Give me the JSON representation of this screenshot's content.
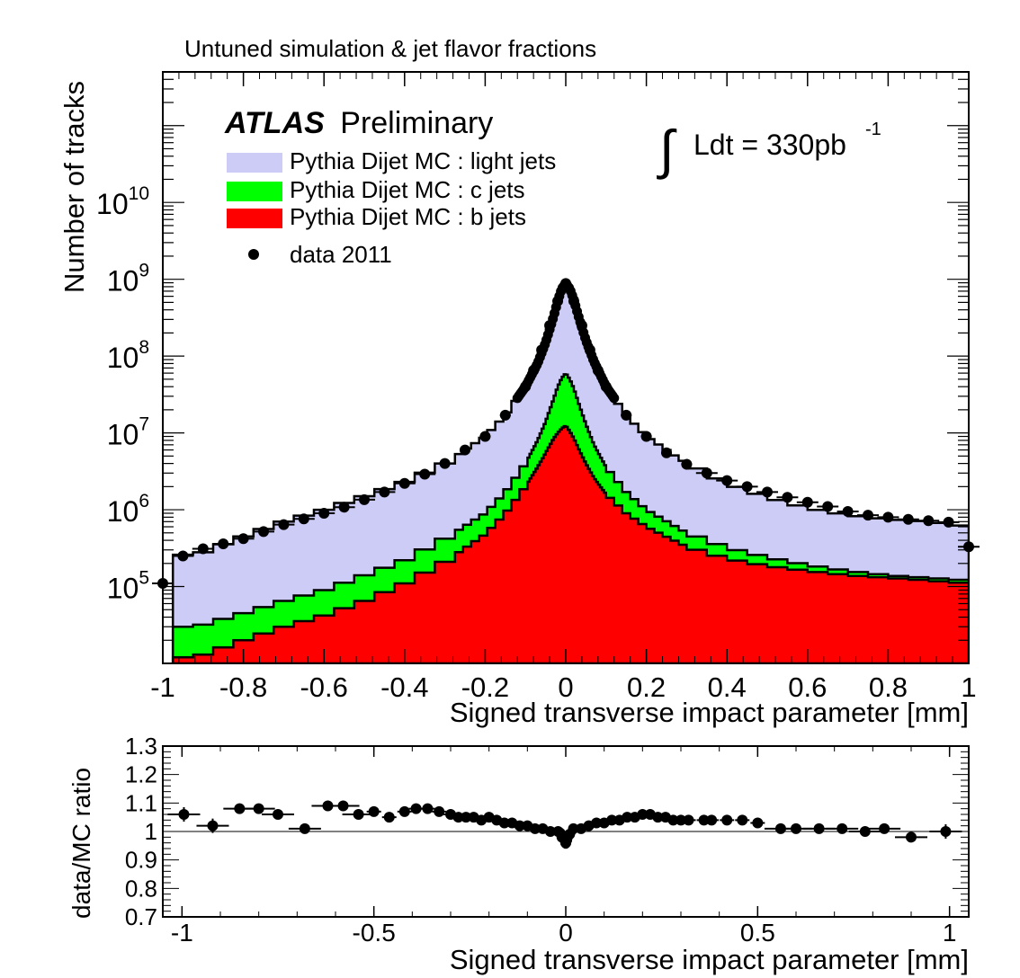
{
  "figure": {
    "top_title": "Untuned simulation & jet flavor fractions",
    "atlas_bold": "ATLAS",
    "atlas_rest": "Preliminary",
    "lumi": {
      "integral_symbol": "∫",
      "text": "Ldt = 330pb",
      "exponent": "-1"
    },
    "colors": {
      "light": "#ccccf7",
      "c": "#00ff00",
      "b": "#ff0000",
      "data": "#000000",
      "outline": "#000000"
    }
  },
  "chart_data": [
    {
      "type": "histogram",
      "stacked": true,
      "log_y": true,
      "ylabel": "Number of tracks",
      "xlabel": "Signed transverse impact parameter [mm]",
      "xlim": [
        -1,
        1
      ],
      "ylim": [
        10000,
        500000000000
      ],
      "x_ticks": [
        -1,
        -0.8,
        -0.6,
        -0.4,
        -0.2,
        0,
        0.2,
        0.4,
        0.6,
        0.8,
        1
      ],
      "x_tick_labels": [
        "-1",
        "-0.8",
        "-0.6",
        "-0.4",
        "-0.2",
        "0",
        "0.2",
        "0.4",
        "0.6",
        "0.8",
        "1"
      ],
      "y_ticks": [
        {
          "base": "10",
          "exp": "5",
          "value": 100000
        },
        {
          "base": "10",
          "exp": "6",
          "value": 1000000
        },
        {
          "base": "10",
          "exp": "7",
          "value": 10000000
        },
        {
          "base": "10",
          "exp": "8",
          "value": 100000000
        },
        {
          "base": "10",
          "exp": "9",
          "value": 1000000000
        },
        {
          "base": "10",
          "exp": "10",
          "value": 10000000000
        }
      ],
      "legend": [
        {
          "label": "Pythia Dijet MC : light jets",
          "kind": "fill",
          "color_key": "light"
        },
        {
          "label": "Pythia Dijet MC : c jets",
          "kind": "fill",
          "color_key": "c"
        },
        {
          "label": "Pythia Dijet MC : b jets",
          "kind": "fill",
          "color_key": "b"
        },
        {
          "label": "data 2011",
          "kind": "marker",
          "color_key": "data"
        }
      ],
      "profile": {
        "x": [
          -0.95,
          -0.9,
          -0.8,
          -0.7,
          -0.6,
          -0.5,
          -0.4,
          -0.3,
          -0.2,
          -0.15,
          -0.1,
          -0.07,
          -0.05,
          -0.03,
          -0.02,
          -0.01,
          0,
          0.01,
          0.02,
          0.03,
          0.05,
          0.07,
          0.1,
          0.15,
          0.2,
          0.3,
          0.4,
          0.5,
          0.6,
          0.7,
          0.8,
          0.9,
          1.0
        ],
        "total": [
          260000,
          280000,
          450000,
          700000,
          1000000,
          1500000,
          2300000,
          4000000,
          9000000,
          17000000,
          40000000,
          80000000,
          150000000,
          330000000,
          520000000,
          750000000,
          880000000,
          750000000,
          540000000,
          350000000,
          160000000,
          85000000,
          40000000,
          17000000,
          9000000,
          4000000,
          2200000,
          1450000,
          1050000,
          850000,
          750000,
          700000,
          600000
        ],
        "c": [
          30000,
          32000,
          45000,
          65000,
          90000,
          140000,
          220000,
          420000,
          900000,
          1700000,
          4000000,
          8000000,
          14000000,
          28000000,
          40000000,
          52000000,
          60000000,
          50000000,
          38000000,
          26000000,
          13000000,
          7000000,
          3600000,
          1700000,
          1000000,
          500000,
          320000,
          240000,
          190000,
          160000,
          140000,
          130000,
          120000
        ],
        "b": [
          12000,
          13000,
          20000,
          30000,
          42000,
          65000,
          110000,
          210000,
          480000,
          900000,
          2000000,
          3600000,
          5500000,
          8500000,
          10000000,
          11500000,
          12500000,
          10500000,
          8500000,
          6500000,
          4000000,
          2600000,
          1600000,
          900000,
          600000,
          330000,
          230000,
          185000,
          160000,
          140000,
          130000,
          120000,
          110000
        ]
      },
      "data_points": {
        "x": [
          -1.0,
          -0.95,
          -0.9,
          -0.85,
          -0.8,
          -0.75,
          -0.7,
          -0.65,
          -0.6,
          -0.55,
          -0.5,
          -0.45,
          -0.4,
          -0.35,
          -0.3,
          -0.25,
          -0.2,
          -0.15,
          -0.1,
          -0.08,
          -0.06,
          -0.04,
          -0.02,
          0,
          0.02,
          0.04,
          0.06,
          0.08,
          0.1,
          0.15,
          0.2,
          0.25,
          0.3,
          0.35,
          0.4,
          0.45,
          0.5,
          0.55,
          0.6,
          0.65,
          0.7,
          0.75,
          0.8,
          0.85,
          0.9,
          0.95,
          1.0
        ],
        "y": [
          110000,
          250000,
          310000,
          360000,
          420000,
          520000,
          640000,
          760000,
          900000,
          1080000,
          1350000,
          1700000,
          2200000,
          2900000,
          4000000,
          6000000,
          9000000,
          17000000,
          40000000,
          65000000,
          120000000,
          250000000,
          520000000,
          880000000,
          520000000,
          250000000,
          120000000,
          65000000,
          40000000,
          17000000,
          9000000,
          5500000,
          3900000,
          3000000,
          2400000,
          2000000,
          1700000,
          1450000,
          1250000,
          1100000,
          950000,
          850000,
          800000,
          750000,
          720000,
          690000,
          330000
        ]
      }
    },
    {
      "type": "scatter",
      "xlabel": "Signed transverse impact parameter [mm]",
      "ylabel": "data/MC ratio",
      "xlim": [
        -1.05,
        1.05
      ],
      "ylim": [
        0.7,
        1.3
      ],
      "reference_line": 1,
      "x_ticks": [
        -1,
        -0.5,
        0,
        0.5,
        1
      ],
      "x_tick_labels": [
        "-1",
        "-0.5",
        "0",
        "0.5",
        "1"
      ],
      "y_ticks": [
        0.7,
        0.8,
        0.9,
        1,
        1.1,
        1.2,
        1.3
      ],
      "y_tick_labels": [
        "0.7",
        "0.8",
        "0.9",
        "1",
        "1.1",
        "1.2",
        "1.3"
      ],
      "points": {
        "x": [
          -0.995,
          -0.92,
          -0.85,
          -0.8,
          -0.75,
          -0.68,
          -0.62,
          -0.58,
          -0.54,
          -0.5,
          -0.46,
          -0.42,
          -0.39,
          -0.36,
          -0.33,
          -0.3,
          -0.28,
          -0.26,
          -0.24,
          -0.22,
          -0.2,
          -0.18,
          -0.16,
          -0.14,
          -0.12,
          -0.1,
          -0.08,
          -0.06,
          -0.04,
          -0.02,
          -0.01,
          0,
          0.01,
          0.02,
          0.04,
          0.06,
          0.08,
          0.1,
          0.12,
          0.14,
          0.16,
          0.18,
          0.2,
          0.22,
          0.24,
          0.26,
          0.28,
          0.3,
          0.32,
          0.36,
          0.38,
          0.42,
          0.46,
          0.5,
          0.56,
          0.6,
          0.66,
          0.72,
          0.78,
          0.83,
          0.9,
          0.99
        ],
        "y": [
          1.06,
          1.02,
          1.08,
          1.08,
          1.06,
          1.01,
          1.09,
          1.09,
          1.06,
          1.07,
          1.05,
          1.07,
          1.08,
          1.08,
          1.07,
          1.06,
          1.05,
          1.05,
          1.05,
          1.04,
          1.05,
          1.04,
          1.03,
          1.03,
          1.02,
          1.02,
          1.01,
          1.01,
          1.0,
          1.0,
          0.98,
          0.96,
          0.99,
          1.01,
          1.01,
          1.02,
          1.03,
          1.03,
          1.04,
          1.04,
          1.05,
          1.05,
          1.06,
          1.06,
          1.05,
          1.05,
          1.04,
          1.04,
          1.04,
          1.04,
          1.04,
          1.04,
          1.04,
          1.03,
          1.01,
          1.01,
          1.01,
          1.01,
          1.0,
          1.01,
          0.98,
          1.0
        ]
      }
    }
  ]
}
